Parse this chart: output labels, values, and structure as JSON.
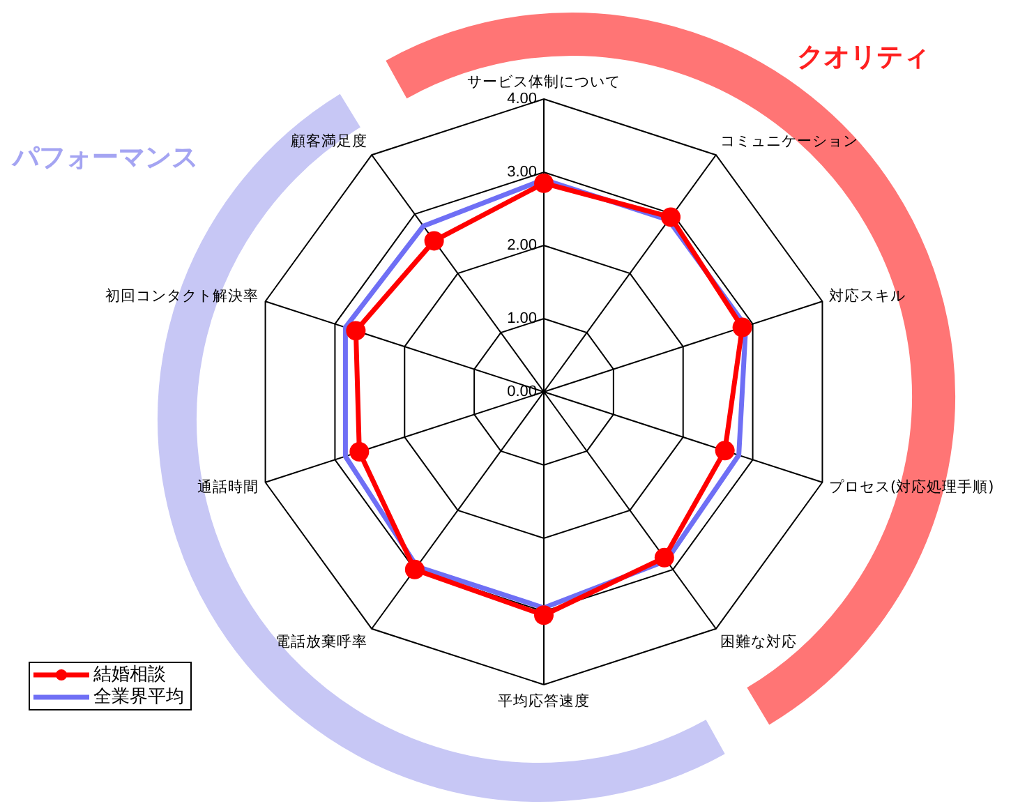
{
  "chart_data": {
    "type": "radar",
    "categories": [
      "サービス体制について",
      "コミュニケーション",
      "対応スキル",
      "プロセス(対応処理手順)",
      "困難な対応",
      "平均応答速度",
      "電話放棄呼率",
      "通話時間",
      "初回コンタクト解決率",
      "顧客満足度"
    ],
    "series": [
      {
        "name": "結婚相談",
        "color": "#ff0000",
        "marker": "circle",
        "values": [
          2.85,
          2.95,
          2.85,
          2.6,
          2.8,
          3.05,
          3.0,
          2.65,
          2.7,
          2.55
        ]
      },
      {
        "name": "全業界平均",
        "color": "#6f6ff5",
        "marker": "none",
        "values": [
          2.9,
          2.9,
          2.9,
          2.8,
          2.85,
          2.95,
          2.95,
          2.85,
          2.85,
          2.8
        ]
      }
    ],
    "ylim": [
      0,
      4
    ],
    "yticks": [
      {
        "value": 0,
        "label": "0.00"
      },
      {
        "value": 1,
        "label": "1.00"
      },
      {
        "value": 2,
        "label": "2.00"
      },
      {
        "value": 3,
        "label": "3.00"
      },
      {
        "value": 4,
        "label": "4.00"
      }
    ],
    "grid": true,
    "legend": "bottom left",
    "line_style": "solid",
    "annotations": [
      "クオリティ",
      "パフォーマンス"
    ]
  }
}
